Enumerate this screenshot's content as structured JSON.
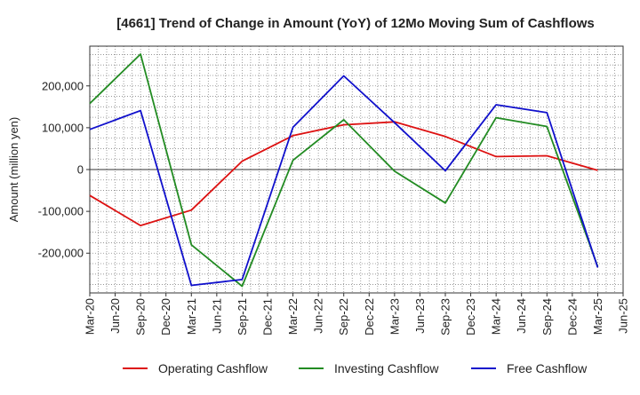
{
  "chart_data": {
    "type": "line",
    "title": "[4661]  Trend of Change in Amount (YoY) of 12Mo Moving Sum of Cashflows",
    "xlabel": "",
    "ylabel": "Amount (million yen)",
    "ylim": [
      -295000,
      295000
    ],
    "yticks": [
      -200000,
      -100000,
      0,
      100000,
      200000
    ],
    "ytick_labels": [
      "-200,000",
      "-100,000",
      "0",
      "100,000",
      "200,000"
    ],
    "categories": [
      "Mar-20",
      "Jun-20",
      "Sep-20",
      "Dec-20",
      "Mar-21",
      "Jun-21",
      "Sep-21",
      "Dec-21",
      "Mar-22",
      "Jun-22",
      "Sep-22",
      "Dec-22",
      "Mar-23",
      "Jun-23",
      "Sep-23",
      "Dec-23",
      "Mar-24",
      "Jun-24",
      "Sep-24",
      "Dec-24",
      "Mar-25",
      "Jun-25"
    ],
    "grid": true,
    "legend_position": "bottom",
    "series": [
      {
        "name": "Operating Cashflow",
        "color": "#dd1111",
        "values": [
          -62000,
          null,
          -134000,
          null,
          -97000,
          null,
          20000,
          null,
          81000,
          null,
          107000,
          null,
          114000,
          null,
          79000,
          null,
          31000,
          null,
          33000,
          null,
          -2000,
          null
        ]
      },
      {
        "name": "Investing Cashflow",
        "color": "#228b22",
        "values": [
          158000,
          null,
          276000,
          null,
          -180000,
          null,
          -279000,
          null,
          22000,
          null,
          119000,
          null,
          -4000,
          null,
          -80000,
          null,
          124000,
          null,
          103000,
          null,
          -232000,
          null
        ]
      },
      {
        "name": "Free Cashflow",
        "color": "#1010cc",
        "values": [
          96000,
          null,
          141000,
          null,
          -277000,
          null,
          -263000,
          null,
          101000,
          null,
          224000,
          null,
          112000,
          null,
          -3000,
          null,
          155000,
          null,
          136000,
          null,
          -234000,
          null
        ]
      }
    ]
  }
}
